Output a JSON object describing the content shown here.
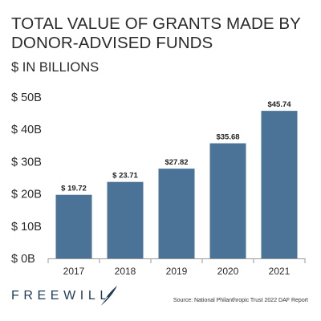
{
  "header": {
    "title_line1": "TOTAL VALUE OF GRANTS MADE BY",
    "title_line2": "DONOR-ADVISED FUNDS",
    "subtitle": "$ IN BILLIONS"
  },
  "footer": {
    "logo_text": "FREEWILL",
    "source": "Source: National Philanthropic Trust 2022 DAF Report"
  },
  "colors": {
    "bar": "#4a7397",
    "axis": "#9a9a9a",
    "text": "#2b2b2b"
  },
  "chart_data": {
    "type": "bar",
    "categories": [
      "2017",
      "2018",
      "2019",
      "2020",
      "2021"
    ],
    "values": [
      19.72,
      23.71,
      27.82,
      35.68,
      45.74
    ],
    "value_labels": [
      "$ 19.72",
      "$ 23.71",
      "$27.82",
      "$35.68",
      "$45.74"
    ],
    "ylim": [
      0,
      50
    ],
    "yticks": [
      0,
      10,
      20,
      30,
      40,
      50
    ],
    "ytick_labels": [
      "$ 0B",
      "$ 10B",
      "$ 20B",
      "$ 30B",
      "$ 40B",
      "$ 50B"
    ],
    "grid": false,
    "legend": "none"
  }
}
